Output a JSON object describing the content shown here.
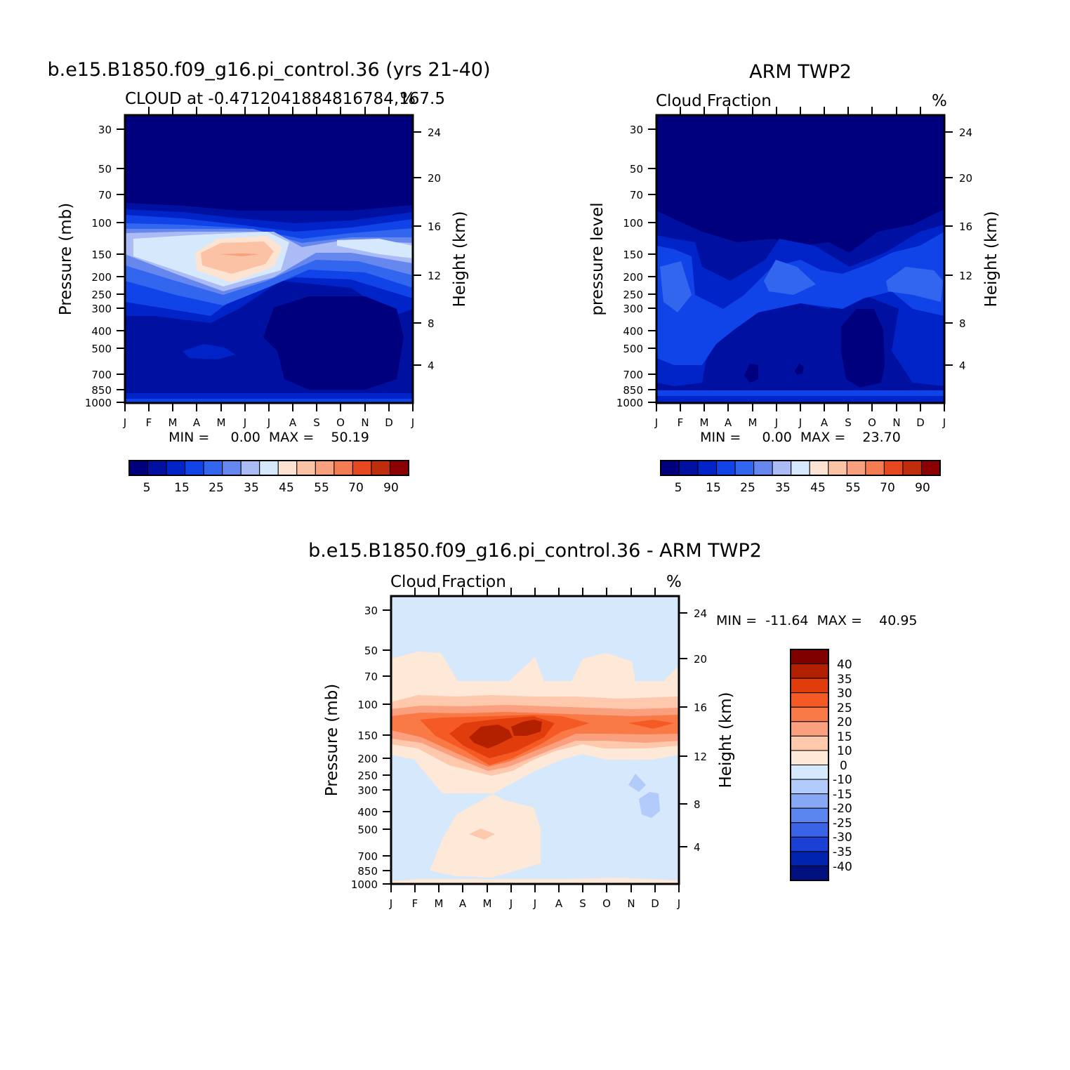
{
  "chart_data": [
    {
      "type": "heatmap",
      "title": "b.e15.B1850.f09_g16.pi_control.36 (yrs 21-40)",
      "subtitle": "CLOUD at -0.4712041884816784,167.5",
      "units": "%",
      "xlabel": "",
      "ylabel": "Pressure (mb)",
      "ylabel_right": "Height (km)",
      "x_ticks": [
        "J",
        "F",
        "M",
        "A",
        "M",
        "J",
        "J",
        "A",
        "S",
        "O",
        "N",
        "D",
        "J"
      ],
      "y_ticks": [
        "30",
        "50",
        "70",
        "100",
        "150",
        "200",
        "250",
        "300",
        "400",
        "500",
        "700",
        "850",
        "1000"
      ],
      "y_ticks_right": [
        "24",
        "20",
        "16",
        "12",
        "8",
        "4"
      ],
      "ylim": [
        1000,
        20
      ],
      "y_scale": "log",
      "stats_text": "MIN =     0.00  MAX =    50.19",
      "min": 0.0,
      "max": 50.19,
      "colorbar_labels": [
        "5",
        "15",
        "25",
        "35",
        "45",
        "55",
        "70",
        "90"
      ]
    },
    {
      "type": "heatmap",
      "title": "ARM TWP2",
      "subtitle": "Cloud Fraction",
      "units": "%",
      "xlabel": "",
      "ylabel": "pressure level",
      "ylabel_right": "Height (km)",
      "x_ticks": [
        "J",
        "F",
        "M",
        "A",
        "M",
        "J",
        "J",
        "A",
        "S",
        "O",
        "N",
        "D",
        "J"
      ],
      "y_ticks": [
        "30",
        "50",
        "70",
        "100",
        "150",
        "200",
        "250",
        "300",
        "400",
        "500",
        "700",
        "850",
        "1000"
      ],
      "y_ticks_right": [
        "24",
        "20",
        "16",
        "12",
        "8",
        "4"
      ],
      "ylim": [
        1000,
        20
      ],
      "y_scale": "log",
      "stats_text": "MIN =     0.00  MAX =    23.70",
      "min": 0.0,
      "max": 23.7,
      "colorbar_labels": [
        "5",
        "15",
        "25",
        "35",
        "45",
        "55",
        "70",
        "90"
      ]
    },
    {
      "type": "heatmap",
      "title": "b.e15.B1850.f09_g16.pi_control.36 - ARM TWP2",
      "subtitle": "Cloud Fraction",
      "units": "%",
      "xlabel": "",
      "ylabel": "Pressure (mb)",
      "ylabel_right": "Height (km)",
      "x_ticks": [
        "J",
        "F",
        "M",
        "A",
        "M",
        "J",
        "J",
        "A",
        "S",
        "O",
        "N",
        "D",
        "J"
      ],
      "y_ticks": [
        "30",
        "50",
        "70",
        "100",
        "150",
        "200",
        "250",
        "300",
        "400",
        "500",
        "700",
        "850",
        "1000"
      ],
      "y_ticks_right": [
        "24",
        "20",
        "16",
        "12",
        "8",
        "4"
      ],
      "ylim": [
        1000,
        20
      ],
      "y_scale": "log",
      "stats_text": "MIN =  -11.64  MAX =    40.95",
      "min": -11.64,
      "max": 40.95,
      "colorbar_labels": [
        "40",
        "35",
        "30",
        "25",
        "20",
        "15",
        "10",
        "0",
        "-10",
        "-15",
        "-20",
        "-25",
        "-30",
        "-35",
        "-40"
      ]
    }
  ],
  "palettes": {
    "abs": [
      "#00007f",
      "#0010a0",
      "#0024c8",
      "#1144e8",
      "#3366ee",
      "#6688ee",
      "#aabbf5",
      "#d6e8fc",
      "#fde3d2",
      "#fbc2a6",
      "#f8a07e",
      "#f57b52",
      "#e5481e",
      "#c02d0c",
      "#8b0000"
    ],
    "diff": [
      "#800000",
      "#b22000",
      "#e03c0c",
      "#f55a24",
      "#f97a46",
      "#fba07e",
      "#fdc8ac",
      "#fee8d8",
      "#d6e8fc",
      "#b2cbfa",
      "#86a8f5",
      "#5c86ef",
      "#3a64e8",
      "#1b40d6",
      "#0023b0",
      "#00107e"
    ]
  }
}
